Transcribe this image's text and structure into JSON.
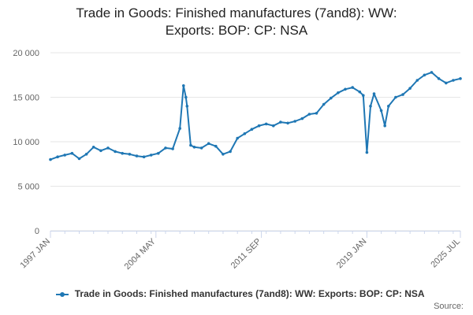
{
  "title": "Trade in Goods: Finished manufactures (7and8): WW: Exports: BOP: CP: NSA",
  "title_lines": [
    "Trade in Goods: Finished manufactures (7and8): WW:",
    "Exports: BOP: CP: NSA"
  ],
  "source_label": "Source:",
  "colors": {
    "series": "#1f77b4",
    "grid": "#e6e6e6",
    "axis_text": "#666666",
    "axis_line": "#ccd6eb"
  },
  "chart_data": {
    "type": "line",
    "title": "Trade in Goods: Finished manufactures (7and8): WW: Exports: BOP: CP: NSA",
    "xlabel": "",
    "ylabel": "",
    "ylim": [
      0,
      20000
    ],
    "y_ticks": [
      0,
      5000,
      10000,
      15000,
      20000
    ],
    "y_tick_labels": [
      "0",
      "5 000",
      "10 000",
      "15 000",
      "20 000"
    ],
    "x_range": [
      "1997 JAN",
      "2025 JUL"
    ],
    "x_tick_labels": [
      "1997 JAN",
      "2004 MAY",
      "2011 SEP",
      "2019 JAN",
      "2025 JUL"
    ],
    "x_tick_dates": [
      "1997-01",
      "2004-05",
      "2011-09",
      "2019-01",
      "2025-07"
    ],
    "grid": "horizontal",
    "legend": "bottom",
    "series": [
      {
        "name": "Trade in Goods: Finished manufactures (7and8): WW: Exports: BOP: CP: NSA",
        "frequency": "monthly",
        "x": [
          "1997-01",
          "1997-07",
          "1998-01",
          "1998-07",
          "1999-01",
          "1999-07",
          "2000-01",
          "2000-07",
          "2001-01",
          "2001-07",
          "2002-01",
          "2002-07",
          "2003-01",
          "2003-07",
          "2004-01",
          "2004-07",
          "2005-01",
          "2005-07",
          "2006-01",
          "2006-04",
          "2006-06",
          "2006-07",
          "2006-10",
          "2007-01",
          "2007-07",
          "2008-01",
          "2008-07",
          "2009-01",
          "2009-07",
          "2010-01",
          "2010-07",
          "2011-01",
          "2011-07",
          "2012-01",
          "2012-07",
          "2013-01",
          "2013-07",
          "2014-01",
          "2014-07",
          "2015-01",
          "2015-07",
          "2016-01",
          "2016-07",
          "2017-01",
          "2017-07",
          "2018-01",
          "2018-07",
          "2018-10",
          "2019-01",
          "2019-04",
          "2019-07",
          "2020-01",
          "2020-04",
          "2020-07",
          "2021-01",
          "2021-07",
          "2022-01",
          "2022-07",
          "2023-01",
          "2023-07",
          "2024-01",
          "2024-07",
          "2025-01",
          "2025-07"
        ],
        "values": [
          8000,
          8300,
          8500,
          8700,
          8100,
          8600,
          9400,
          9000,
          9300,
          8900,
          8700,
          8600,
          8400,
          8300,
          8500,
          8700,
          9300,
          9200,
          11500,
          16300,
          15000,
          14000,
          9600,
          9400,
          9300,
          9800,
          9500,
          8600,
          8900,
          10400,
          10900,
          11400,
          11800,
          12000,
          11800,
          12200,
          12100,
          12300,
          12600,
          13100,
          13200,
          14200,
          14900,
          15500,
          15900,
          16100,
          15600,
          15200,
          8800,
          14000,
          15400,
          13500,
          11800,
          14000,
          15000,
          15300,
          16000,
          16900,
          17500,
          17800,
          17100,
          16600,
          16900,
          17100
        ]
      }
    ]
  }
}
